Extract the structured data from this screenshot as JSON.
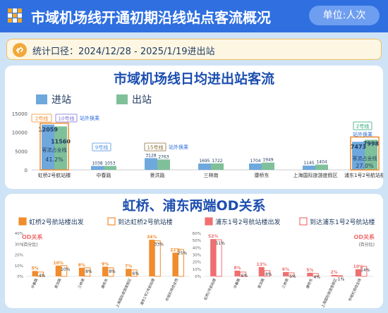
{
  "header": {
    "title": "市域机场线开通初期沿线站点客流概况",
    "unit": "单位:人次"
  },
  "stat": {
    "text": "统计口径：2024/12/28 - 2025/1/19进出站"
  },
  "watermark": "SMTCC",
  "colors": {
    "header": "#2f6fe0",
    "in": "#6fa8dc",
    "out": "#7fc09a",
    "orange": "#f08c2e",
    "pink": "#ef7070"
  },
  "section1": {
    "title": "市域机场线日均进出站客流",
    "legend_in": "进站",
    "legend_out": "出站",
    "annotations": {
      "line2": "2号线",
      "line10": "10号线",
      "transfer1": "站外换乘",
      "line9": "9号线",
      "line15": "15号线",
      "transfer2": "站外换乘",
      "line2b": "2号线",
      "transfer3": "站外换乘",
      "share_hq_label": "客流占全线",
      "share_hq": "41.2%",
      "share_pd_label": "客流占全线",
      "share_pd": "27.0%"
    }
  },
  "section2": {
    "title": "虹桥、浦东两端OD关系",
    "legend": [
      "虹桥2号航站楼出发",
      "到达虹桥2号航站楼",
      "浦东1号2号航站楼出发",
      "到达浦东1号2号航站楼"
    ],
    "od_label": "OD关系",
    "od_unit": "(百分比)"
  },
  "chart_data": [
    {
      "type": "bar",
      "title": "市域机场线日均进出站客流",
      "categories": [
        "虹桥2号航站楼",
        "中春路",
        "景洪路",
        "三林南",
        "康桥东",
        "上海国际旅游度假区",
        "浦东1号2号航站楼"
      ],
      "series": [
        {
          "name": "进站",
          "values": [
            12059,
            1038,
            3128,
            1695,
            1704,
            1145,
            7473
          ]
        },
        {
          "name": "出站",
          "values": [
            11560,
            1053,
            2763,
            1722,
            1949,
            1404,
            7998
          ]
        }
      ],
      "yticks": [
        0,
        5000,
        10000,
        15000
      ],
      "ylim": [
        0,
        15000
      ]
    },
    {
      "type": "bar",
      "title": "虹桥2号航站楼",
      "categories": [
        "中春路",
        "景洪路",
        "三林南",
        "康桥东",
        "上海国际旅游度假区",
        "浦东1号2号航站楼",
        "市域机场线全线"
      ],
      "series": [
        {
          "name": "虹桥2号航站楼出发",
          "values": [
            5,
            10,
            8,
            9,
            7,
            34,
            22
          ],
          "labels": [
            "5%",
            "10%",
            "8%",
            "9%",
            "7%",
            "34%",
            "22%"
          ]
        },
        {
          "name": "到达虹桥2号航站楼",
          "values": [
            4,
            10,
            8,
            8,
            6,
            33,
            25
          ],
          "labels": [
            "4%",
            "10%",
            "8%",
            "8%",
            "6%",
            "33%",
            "25%"
          ]
        }
      ],
      "yticks": [
        "0%",
        "10%",
        "20%",
        "30%",
        "40%"
      ],
      "ylim": [
        0,
        40
      ]
    },
    {
      "type": "bar",
      "title": "浦东1号2号航站楼",
      "categories": [
        "虹桥2号航站楼",
        "中春路",
        "景洪路",
        "三林南",
        "康桥东",
        "上海国际旅游度假区",
        "市域机场线全线"
      ],
      "series": [
        {
          "name": "浦东1号2号航站楼出发",
          "values": [
            52,
            8,
            13,
            6,
            5,
            2,
            10
          ],
          "labels": [
            "52%",
            "8%",
            "13%",
            "6%",
            "5%",
            "2%",
            "10%"
          ]
        },
        {
          "name": "到达浦东1号2号航站楼",
          "values": [
            51,
            6,
            8,
            5,
            4,
            1,
            14
          ],
          "labels": [
            "51%",
            "6%",
            "8%",
            "5%",
            "4%",
            "1%",
            "14%"
          ]
        }
      ],
      "yticks": [
        "0%",
        "10%",
        "20%",
        "30%",
        "40%",
        "50%",
        "60%"
      ],
      "ylim": [
        0,
        60
      ]
    }
  ]
}
